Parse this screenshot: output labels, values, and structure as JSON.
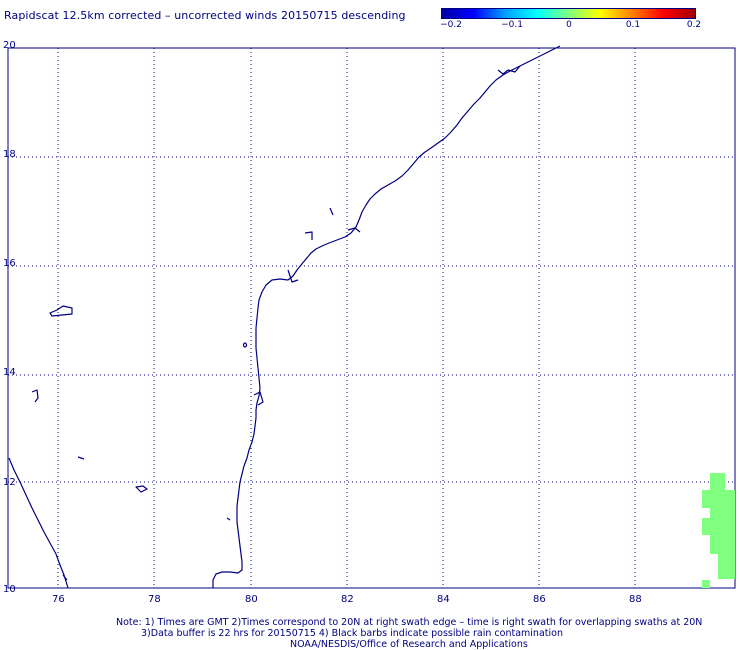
{
  "title": "Rapidscat 12.5km corrected – uncorrected winds 20150715 descending",
  "colorbar": {
    "ticks": [
      "−0.2",
      "−0.1",
      "0",
      "0.1",
      "0.2"
    ],
    "colors": [
      "#0000a0",
      "#0000ff",
      "#00a0ff",
      "#00ffff",
      "#80ff80",
      "#ffff00",
      "#ff8000",
      "#ff0000",
      "#a00000"
    ]
  },
  "map": {
    "lat_labels": [
      "20",
      "18",
      "16",
      "14",
      "12",
      "10"
    ],
    "lon_labels": [
      "76",
      "78",
      "80",
      "82",
      "84",
      "86",
      "88"
    ],
    "coast_color": "#000080",
    "wind_cell_color": "#80ff80"
  },
  "notes": {
    "line1": "Note: 1) Times are GMT 2)Times correspond to 20N at right swath edge – time is right swath for overlapping swaths at 20N",
    "line2": "3)Data buffer is 22 hrs for 20150715 4) Black barbs indicate possible rain contamination",
    "line3": "NOAA/NESDIS/Office of Research and Applications"
  }
}
